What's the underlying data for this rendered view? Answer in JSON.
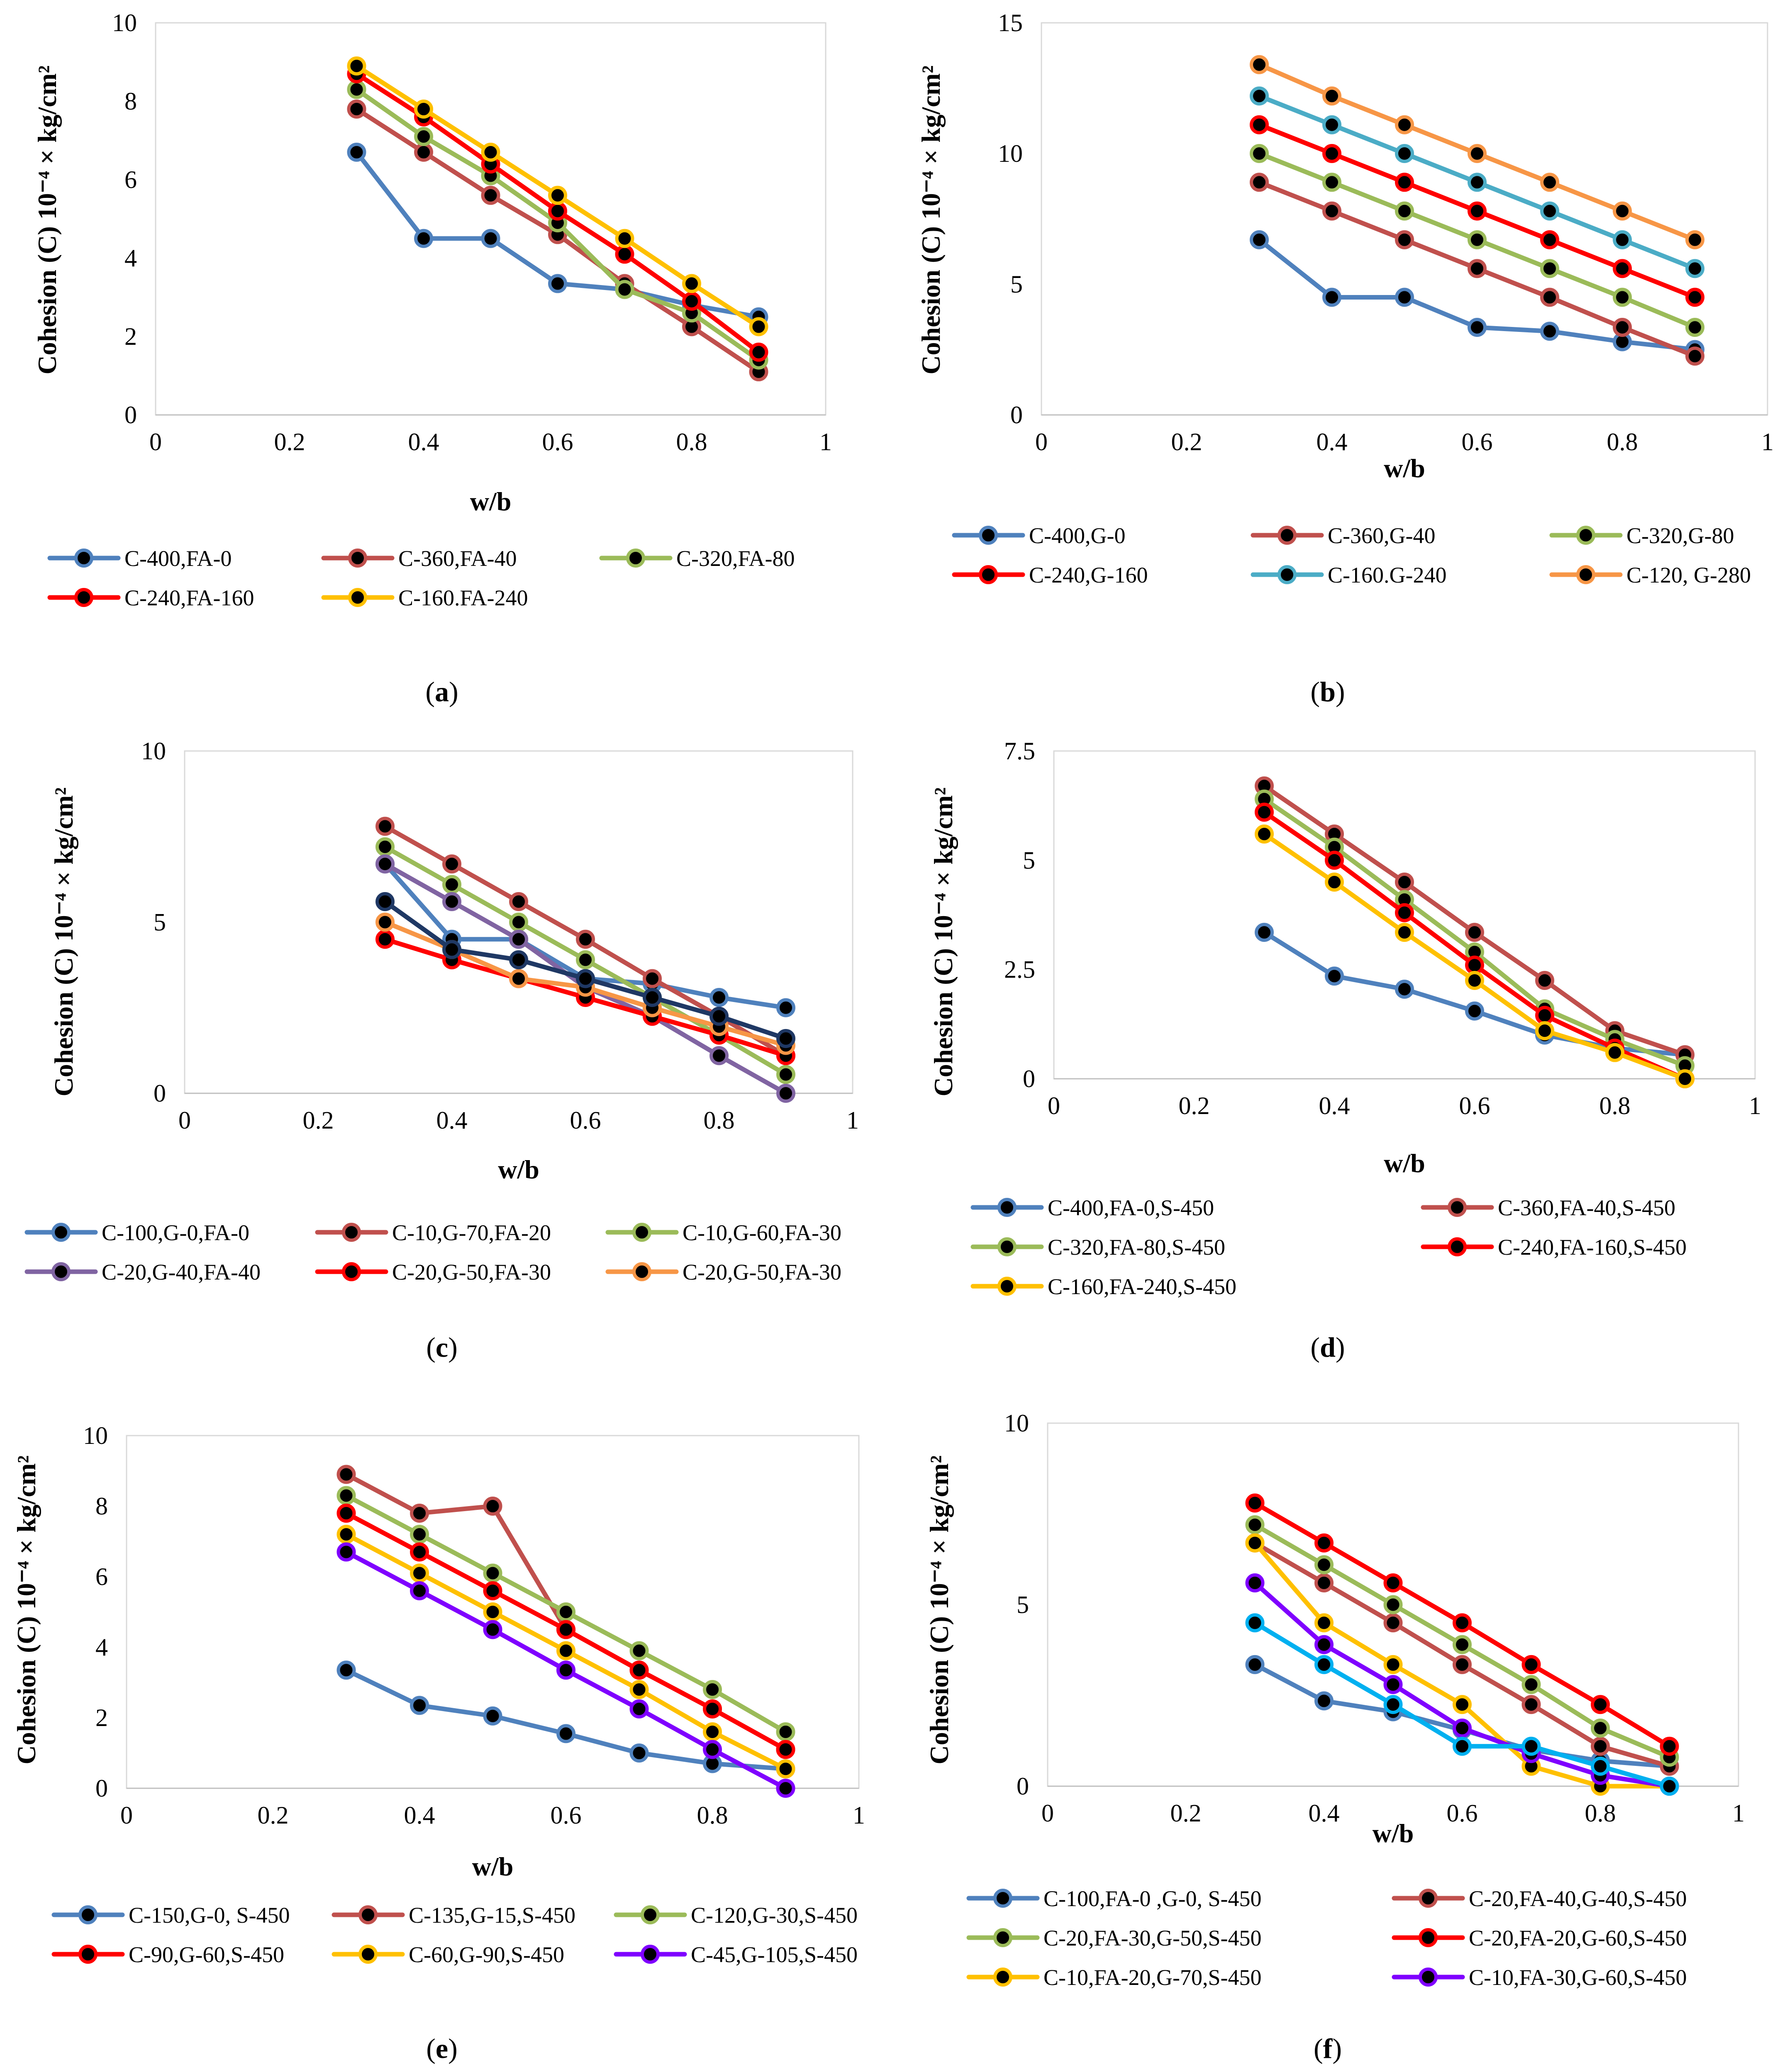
{
  "colors": {
    "blue": "#4F81BD",
    "brown": "#C0504D",
    "green": "#9BBB59",
    "red": "#FF0000",
    "yellow": "#FFC000",
    "cyan": "#4BACC6",
    "orange": "#F79646",
    "purple": "#8064A2",
    "navy": "#1F3864",
    "violet": "#7F00FF",
    "skyblue": "#00B0F0",
    "marker": "#000000"
  },
  "chart_data": [
    {
      "id": "a",
      "caption": "(a)",
      "caption_letter": "a",
      "type": "line",
      "title": "",
      "xlabel": "w/b",
      "ylabel": "Cohesion (C) 10⁻⁴ × kg/cm²",
      "xlim": [
        0,
        1
      ],
      "ylim": [
        0,
        10
      ],
      "x_ticks": [
        "0",
        "0.2",
        "0.4",
        "0.6",
        "0.8",
        "1"
      ],
      "y_ticks": [
        "0",
        "2",
        "4",
        "6",
        "8",
        "10"
      ],
      "y_tick_values": [
        0,
        2,
        4,
        6,
        8,
        10
      ],
      "grid": false,
      "legend_position": "bottom",
      "legend_columns": 3,
      "x": [
        0.3,
        0.4,
        0.5,
        0.6,
        0.7,
        0.8,
        0.9
      ],
      "series": [
        {
          "name": "C-400,FA-0",
          "color": "blue",
          "values": [
            6.7,
            4.5,
            4.5,
            3.35,
            3.2,
            2.8,
            2.5
          ]
        },
        {
          "name": "C-360,FA-40",
          "color": "brown",
          "values": [
            7.8,
            6.7,
            5.6,
            4.6,
            3.35,
            2.25,
            1.1
          ]
        },
        {
          "name": "C-320,FA-80",
          "color": "green",
          "values": [
            8.3,
            7.1,
            6.1,
            4.9,
            3.2,
            2.6,
            1.4
          ]
        },
        {
          "name": "C-240,FA-160",
          "color": "red",
          "values": [
            8.7,
            7.6,
            6.4,
            5.2,
            4.1,
            2.9,
            1.6
          ]
        },
        {
          "name": "C-160.FA-240",
          "color": "yellow",
          "values": [
            8.9,
            7.8,
            6.7,
            5.6,
            4.5,
            3.35,
            2.25
          ]
        }
      ]
    },
    {
      "id": "b",
      "caption": "(b)",
      "caption_letter": "b",
      "type": "line",
      "title": "",
      "xlabel": "w/b",
      "ylabel": "Cohesion (C) 10⁻⁴ × kg/cm²",
      "xlim": [
        0,
        1
      ],
      "ylim": [
        0,
        15
      ],
      "x_ticks": [
        "0",
        "0.2",
        "0.4",
        "0.6",
        "0.8",
        "1"
      ],
      "y_ticks": [
        "0",
        "5",
        "10",
        "15"
      ],
      "y_tick_values": [
        0,
        5,
        10,
        15
      ],
      "grid": false,
      "legend_position": "bottom",
      "legend_columns": 3,
      "x": [
        0.3,
        0.4,
        0.5,
        0.6,
        0.7,
        0.8,
        0.9
      ],
      "series": [
        {
          "name": "C-400,G-0",
          "color": "blue",
          "values": [
            6.7,
            4.5,
            4.5,
            3.35,
            3.2,
            2.8,
            2.5
          ]
        },
        {
          "name": "C-360,G-40",
          "color": "brown",
          "values": [
            8.9,
            7.8,
            6.7,
            5.6,
            4.5,
            3.35,
            2.25
          ]
        },
        {
          "name": "C-320,G-80",
          "color": "green",
          "values": [
            10.0,
            8.9,
            7.8,
            6.7,
            5.6,
            4.5,
            3.35
          ]
        },
        {
          "name": "C-240,G-160",
          "color": "red",
          "values": [
            11.1,
            10.0,
            8.9,
            7.8,
            6.7,
            5.6,
            4.5
          ]
        },
        {
          "name": "C-160.G-240",
          "color": "cyan",
          "values": [
            12.2,
            11.1,
            10.0,
            8.9,
            7.8,
            6.7,
            5.6
          ]
        },
        {
          "name": "C-120, G-280",
          "color": "orange",
          "values": [
            13.4,
            12.2,
            11.1,
            10.0,
            8.9,
            7.8,
            6.7
          ]
        }
      ]
    },
    {
      "id": "c",
      "caption": "(c)",
      "caption_letter": "c",
      "type": "line",
      "title": "",
      "xlabel": "w/b",
      "ylabel": "Cohesion (C) 10⁻⁴ × kg/cm²",
      "xlim": [
        0,
        1
      ],
      "ylim": [
        0,
        10
      ],
      "x_ticks": [
        "0",
        "0.2",
        "0.4",
        "0.6",
        "0.8",
        "1"
      ],
      "y_ticks": [
        "0",
        "5",
        "10"
      ],
      "y_tick_values": [
        0,
        5,
        10
      ],
      "grid": false,
      "legend_position": "bottom",
      "legend_columns": 3,
      "x": [
        0.3,
        0.4,
        0.5,
        0.6,
        0.7,
        0.8,
        0.9
      ],
      "series": [
        {
          "name": "C-100,G-0,FA-0",
          "color": "blue",
          "values": [
            6.7,
            4.5,
            4.5,
            3.35,
            3.2,
            2.8,
            2.5
          ]
        },
        {
          "name": "C-10,G-70,FA-20",
          "color": "brown",
          "values": [
            7.8,
            6.7,
            5.6,
            4.5,
            3.35,
            2.25,
            1.1
          ]
        },
        {
          "name": "C-10,G-60,FA-30",
          "color": "green",
          "values": [
            7.2,
            6.1,
            5.0,
            3.9,
            2.8,
            1.7,
            0.55
          ]
        },
        {
          "name": "C-20,G-40,FA-40",
          "color": "purple",
          "values": [
            6.7,
            5.6,
            4.5,
            3.1,
            2.25,
            1.1,
            0.0
          ]
        },
        {
          "name": "C-20,G-50,FA-30",
          "color": "red",
          "values": [
            4.5,
            3.9,
            3.35,
            2.8,
            2.25,
            1.7,
            1.1
          ]
        },
        {
          "name": "C-20,G-50,FA-30",
          "color": "orange",
          "values": [
            5.0,
            4.2,
            3.35,
            3.1,
            2.5,
            1.95,
            1.4
          ]
        },
        {
          "name": "",
          "color": "navy",
          "values": [
            5.6,
            4.2,
            3.9,
            3.35,
            2.8,
            2.25,
            1.6
          ]
        }
      ],
      "legend_count": 6
    },
    {
      "id": "d",
      "caption": "(d)",
      "caption_letter": "d",
      "type": "line",
      "title": "",
      "xlabel": "w/b",
      "ylabel": "Cohesion (C) 10⁻⁴ × kg/cm²",
      "xlim": [
        0,
        1
      ],
      "ylim": [
        0,
        7.5
      ],
      "x_ticks": [
        "0",
        "0.2",
        "0.4",
        "0.6",
        "0.8",
        "1"
      ],
      "y_ticks": [
        "0",
        "2.5",
        "5",
        "7.5"
      ],
      "y_tick_values": [
        0,
        2.5,
        5,
        7.5
      ],
      "grid": false,
      "legend_position": "bottom",
      "legend_columns": 2,
      "x": [
        0.3,
        0.4,
        0.5,
        0.6,
        0.7,
        0.8,
        0.9
      ],
      "series": [
        {
          "name": "C-400,FA-0,S-450",
          "color": "blue",
          "values": [
            3.35,
            2.35,
            2.05,
            1.55,
            1.0,
            0.7,
            0.55
          ]
        },
        {
          "name": "C-360,FA-40,S-450",
          "color": "brown",
          "values": [
            6.7,
            5.6,
            4.5,
            3.35,
            2.25,
            1.1,
            0.55
          ]
        },
        {
          "name": "C-320,FA-80,S-450",
          "color": "green",
          "values": [
            6.4,
            5.3,
            4.1,
            2.9,
            1.6,
            0.9,
            0.3
          ]
        },
        {
          "name": "C-240,FA-160,S-450",
          "color": "red",
          "values": [
            6.1,
            5.0,
            3.8,
            2.6,
            1.45,
            0.7,
            0.0
          ]
        },
        {
          "name": "C-160,FA-240,S-450",
          "color": "yellow",
          "values": [
            5.6,
            4.5,
            3.35,
            2.25,
            1.1,
            0.6,
            0.0
          ]
        }
      ]
    },
    {
      "id": "e",
      "caption": "(e)",
      "caption_letter": "e",
      "type": "line",
      "title": "",
      "xlabel": "w/b",
      "ylabel": "Cohesion (C) 10⁻⁴ × kg/cm²",
      "xlim": [
        0,
        1
      ],
      "ylim": [
        0,
        10
      ],
      "x_ticks": [
        "0",
        "0.2",
        "0.4",
        "0.6",
        "0.8",
        "1"
      ],
      "y_ticks": [
        "0",
        "2",
        "4",
        "6",
        "8",
        "10"
      ],
      "y_tick_values": [
        0,
        2,
        4,
        6,
        8,
        10
      ],
      "grid": false,
      "legend_position": "bottom",
      "legend_columns": 3,
      "x": [
        0.3,
        0.4,
        0.5,
        0.6,
        0.7,
        0.8,
        0.9
      ],
      "series": [
        {
          "name": "C-150,G-0, S-450",
          "color": "blue",
          "values": [
            3.35,
            2.35,
            2.05,
            1.55,
            1.0,
            0.7,
            0.55
          ]
        },
        {
          "name": "C-135,G-15,S-450",
          "color": "brown",
          "values": [
            8.9,
            7.8,
            8.0,
            4.5,
            3.35,
            2.25,
            1.1
          ]
        },
        {
          "name": "C-120,G-30,S-450",
          "color": "green",
          "values": [
            8.3,
            7.2,
            6.1,
            5.0,
            3.9,
            2.8,
            1.6
          ]
        },
        {
          "name": "C-90,G-60,S-450",
          "color": "red",
          "values": [
            7.8,
            6.7,
            5.6,
            4.5,
            3.35,
            2.25,
            1.1
          ]
        },
        {
          "name": "C-60,G-90,S-450",
          "color": "yellow",
          "values": [
            7.2,
            6.1,
            5.0,
            3.9,
            2.8,
            1.6,
            0.55
          ]
        },
        {
          "name": "C-45,G-105,S-450",
          "color": "violet",
          "values": [
            6.7,
            5.6,
            4.5,
            3.35,
            2.25,
            1.1,
            0.0
          ]
        }
      ]
    },
    {
      "id": "f",
      "caption": "(f)",
      "caption_letter": "f",
      "type": "line",
      "title": "",
      "xlabel": "w/b",
      "ylabel": "Cohesion (C) 10⁻⁴ × kg/cm²",
      "xlim": [
        0,
        1
      ],
      "ylim": [
        0,
        10
      ],
      "x_ticks": [
        "0",
        "0.2",
        "0.4",
        "0.6",
        "0.8",
        "1"
      ],
      "y_ticks": [
        "0",
        "5",
        "10"
      ],
      "y_tick_values": [
        0,
        5,
        10
      ],
      "grid": false,
      "legend_position": "bottom",
      "legend_columns": 2,
      "x": [
        0.3,
        0.4,
        0.5,
        0.6,
        0.7,
        0.8,
        0.9
      ],
      "series": [
        {
          "name": "C-100,FA-0 ,G-0, S-450",
          "color": "blue",
          "values": [
            3.35,
            2.35,
            2.05,
            1.55,
            1.0,
            0.7,
            0.55
          ]
        },
        {
          "name": "C-20,FA-40,G-40,S-450",
          "color": "brown",
          "values": [
            6.7,
            5.6,
            4.5,
            3.35,
            2.25,
            1.1,
            0.55
          ]
        },
        {
          "name": "C-20,FA-30,G-50,S-450",
          "color": "green",
          "values": [
            7.2,
            6.1,
            5.0,
            3.9,
            2.8,
            1.6,
            0.8
          ]
        },
        {
          "name": "C-20,FA-20,G-60,S-450",
          "color": "red",
          "values": [
            7.8,
            6.7,
            5.6,
            4.5,
            3.35,
            2.25,
            1.1
          ]
        },
        {
          "name": "C-10,FA-20,G-70,S-450",
          "color": "yellow",
          "values": [
            6.7,
            4.5,
            3.35,
            2.25,
            0.55,
            0.0,
            0.0
          ]
        },
        {
          "name": "C-10,FA-30,G-60,S-450",
          "color": "violet",
          "values": [
            5.6,
            3.9,
            2.8,
            1.6,
            0.9,
            0.3,
            0.0
          ]
        },
        {
          "name": "",
          "color": "skyblue",
          "values": [
            4.5,
            3.35,
            2.25,
            1.1,
            1.1,
            0.55,
            0.0
          ]
        }
      ],
      "legend_count": 6
    }
  ]
}
